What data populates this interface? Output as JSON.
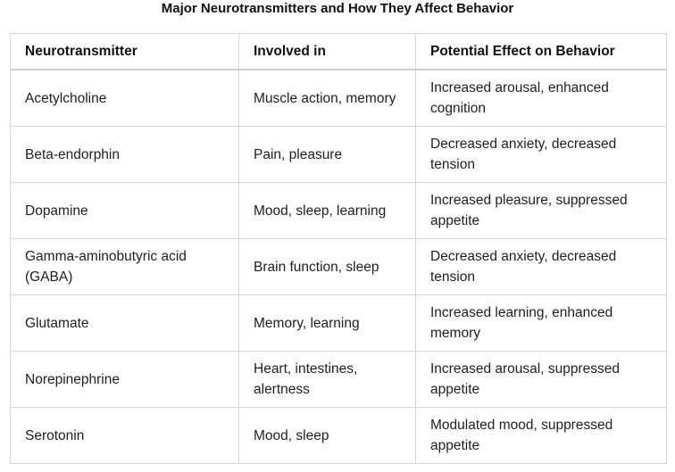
{
  "title": "Major Neurotransmitters and How They Affect Behavior",
  "table": {
    "headers": [
      "Neurotransmitter",
      "Involved in",
      "Potential Effect on Behavior"
    ],
    "rows": [
      [
        "Acetylcholine",
        "Muscle action, memory",
        "Increased arousal, enhanced cognition"
      ],
      [
        "Beta-endorphin",
        "Pain, pleasure",
        "Decreased anxiety, decreased tension"
      ],
      [
        "Dopamine",
        "Mood, sleep, learning",
        "Increased pleasure, suppressed appetite"
      ],
      [
        "Gamma-aminobutyric acid (GABA)",
        "Brain function, sleep",
        "Decreased anxiety, decreased tension"
      ],
      [
        "Glutamate",
        "Memory, learning",
        "Increased learning, enhanced memory"
      ],
      [
        "Norepinephrine",
        "Heart, intestines, alertness",
        "Increased arousal, suppressed appetite"
      ],
      [
        "Serotonin",
        "Mood, sleep",
        "Modulated mood, suppressed appetite"
      ]
    ]
  },
  "colors": {
    "border": "#d6d6d6",
    "text": "#1f1f1f",
    "background": "#ffffff"
  }
}
